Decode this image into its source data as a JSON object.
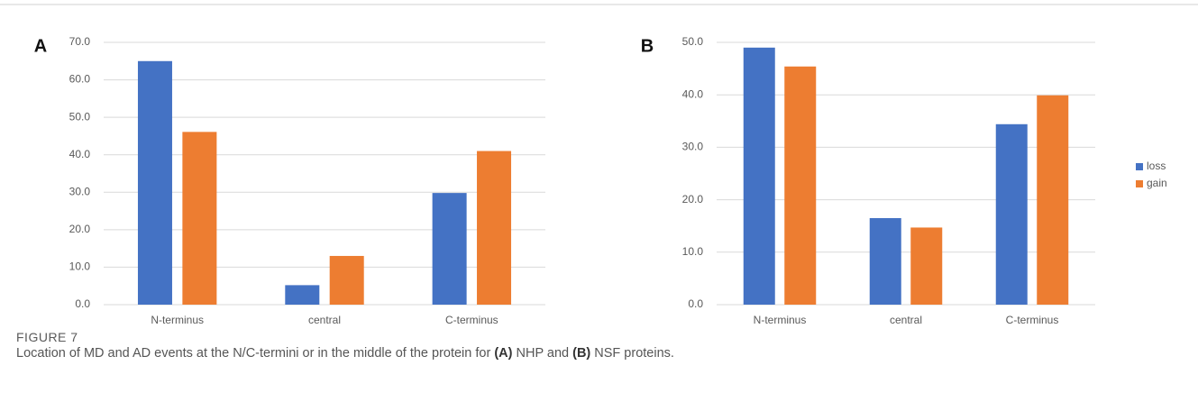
{
  "chart_data": [
    {
      "type": "bar",
      "panel": "A",
      "categories": [
        "N-terminus",
        "central",
        "C-terminus"
      ],
      "series": [
        {
          "color": "#4472c4",
          "values": [
            65,
            5.2,
            29.8
          ]
        },
        {
          "color": "#ed7d31",
          "values": [
            46.1,
            13,
            41
          ]
        }
      ],
      "ylim": [
        0,
        70
      ],
      "yticks": [
        {
          "value": 0,
          "label": "0.0"
        },
        {
          "value": 10,
          "label": "10.0"
        },
        {
          "value": 20,
          "label": "20.0"
        },
        {
          "value": 30,
          "label": "30.0"
        },
        {
          "value": 40,
          "label": "40.0"
        },
        {
          "value": 50,
          "label": "50.0"
        },
        {
          "value": 60,
          "label": "60.0"
        },
        {
          "value": 70,
          "label": "70.0"
        }
      ],
      "grid": true
    },
    {
      "type": "bar",
      "panel": "B",
      "categories": [
        "N-terminus",
        "central",
        "C-terminus"
      ],
      "series": [
        {
          "name": "loss",
          "color": "#4472c4",
          "values": [
            49,
            16.5,
            34.4
          ]
        },
        {
          "name": "gain",
          "color": "#ed7d31",
          "values": [
            45.4,
            14.7,
            39.9
          ]
        }
      ],
      "ylim": [
        0,
        50
      ],
      "yticks": [
        {
          "value": 0,
          "label": "0.0"
        },
        {
          "value": 10,
          "label": "10.0"
        },
        {
          "value": 20,
          "label": "20.0"
        },
        {
          "value": 30,
          "label": "30.0"
        },
        {
          "value": 40,
          "label": "40.0"
        },
        {
          "value": 50,
          "label": "50.0"
        }
      ],
      "grid": true,
      "legend": "right"
    }
  ],
  "figure_label": "FIGURE 7",
  "caption": [
    "Location of MD and AD events at the N/C-termini or in the middle of the protein for ",
    "(A)",
    " NHP and ",
    "(B)",
    " NSF proteins."
  ]
}
